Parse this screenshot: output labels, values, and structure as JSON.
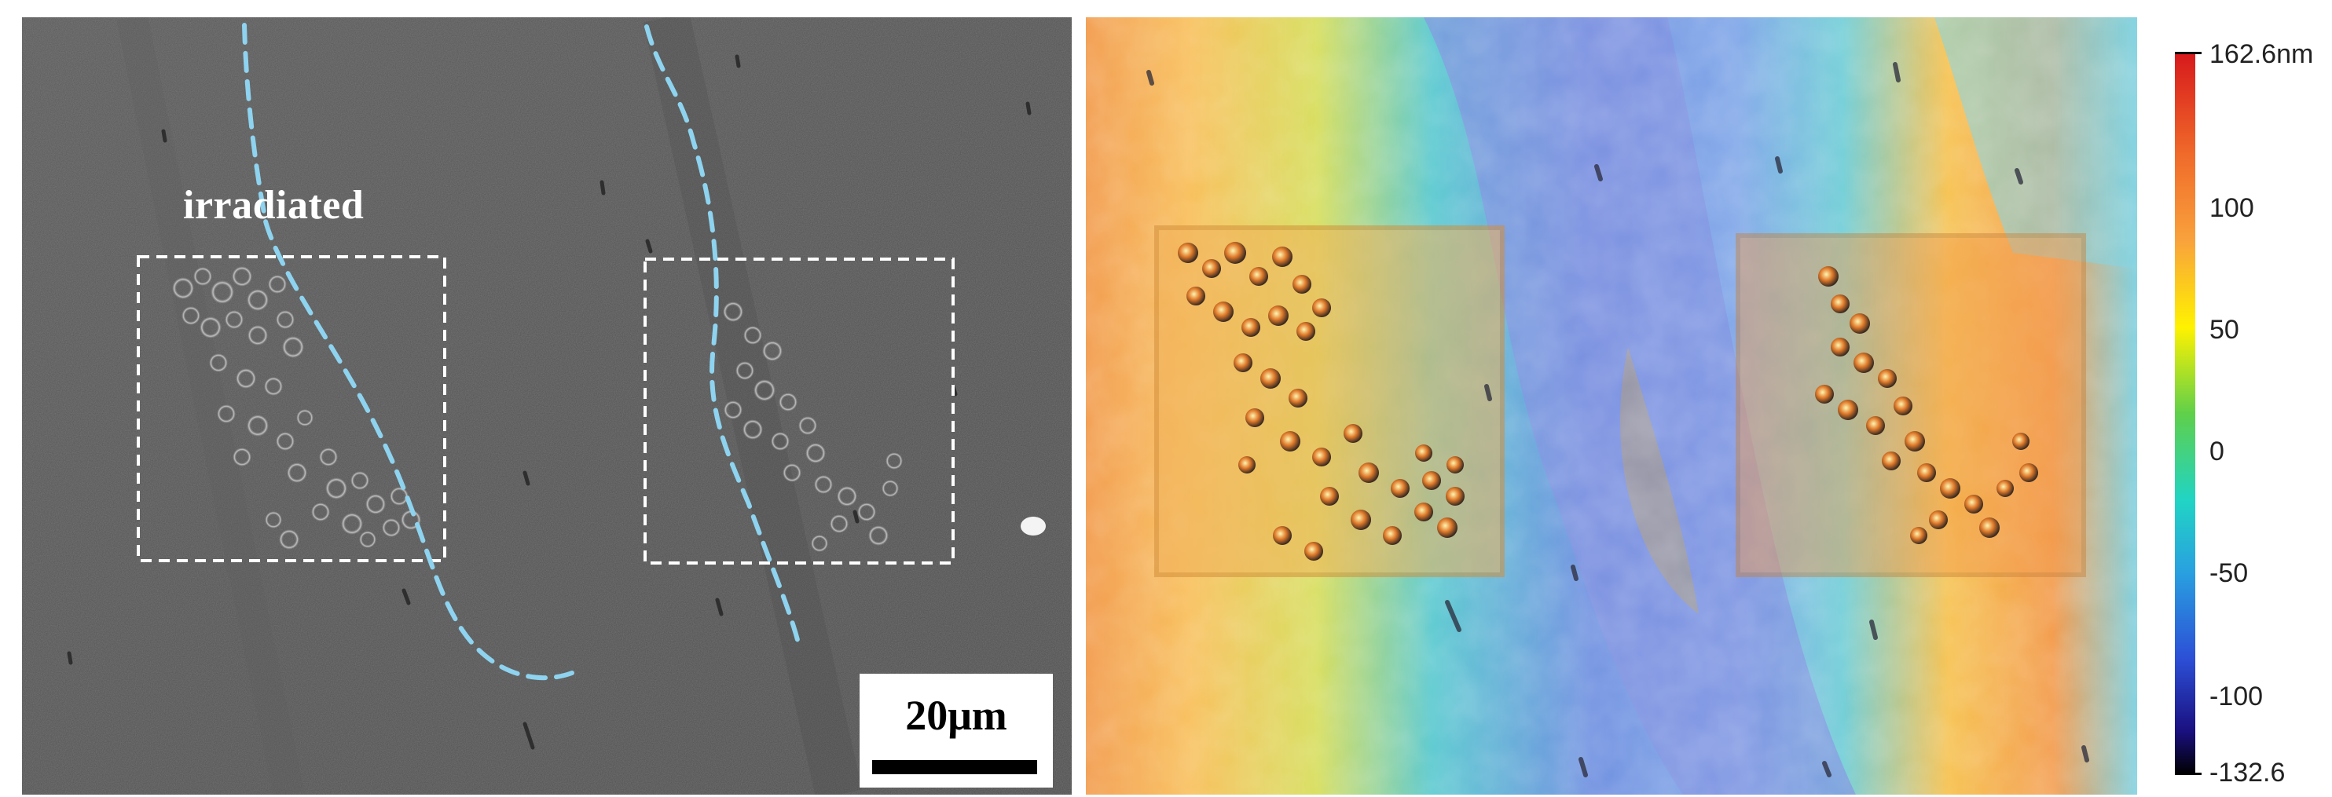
{
  "sem_panel": {
    "label": "irradiated",
    "scale_bar": "20μm"
  },
  "afm_panel": {
    "colorbar": {
      "max": "162.6nm",
      "ticks": [
        "100",
        "50",
        "0",
        "-50",
        "-100"
      ],
      "min": "-132.6"
    }
  }
}
